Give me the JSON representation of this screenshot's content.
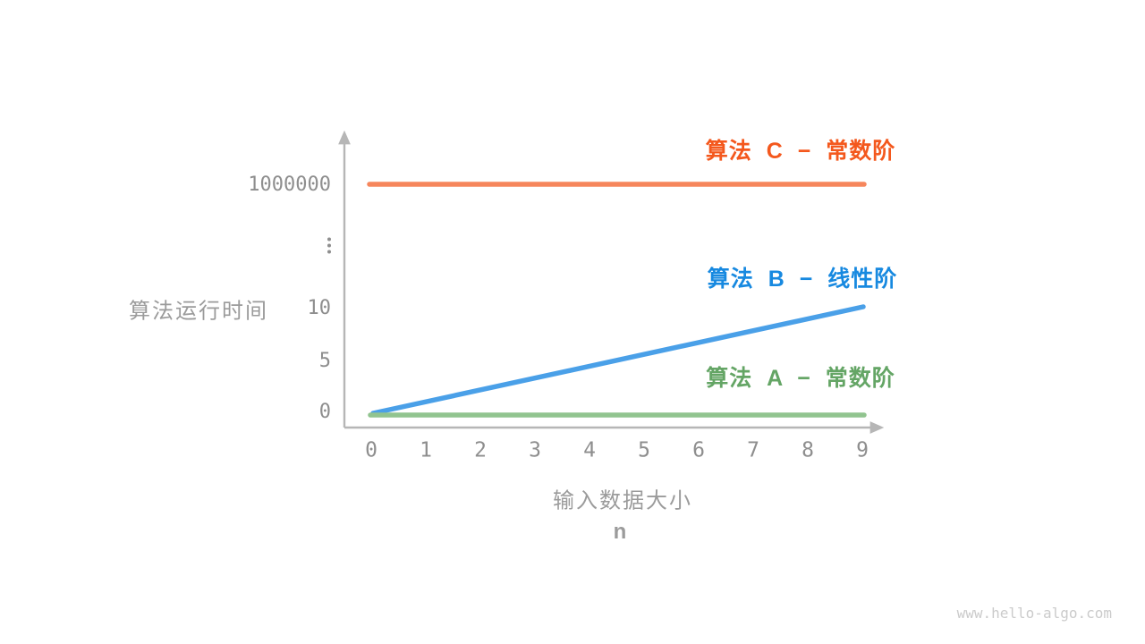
{
  "watermark": "www.hello-algo.com",
  "colors": {
    "background": "#ffffff",
    "axis": "#b6b6b6",
    "tick_text": "#8e8e8e",
    "axis_title_text": "#9b9b9b",
    "watermark_text": "#cbcbcb"
  },
  "chart_data": {
    "type": "line",
    "title": "",
    "xlabel": "输入数据大小",
    "x_variable": "n",
    "ylabel": "算法运行时间",
    "x": [
      0,
      1,
      2,
      3,
      4,
      5,
      6,
      7,
      8,
      9
    ],
    "x_tick_labels": [
      "0",
      "1",
      "2",
      "3",
      "4",
      "5",
      "6",
      "7",
      "8",
      "9"
    ],
    "y_tick_labels_top_to_bottom": [
      "1000000",
      "⋮",
      "10",
      "5",
      "0"
    ],
    "y_axis_broken": true,
    "grid": false,
    "legend_position": "right-of-lines",
    "series": [
      {
        "name": "算法 C − 常数阶",
        "label_color": "#f4581d",
        "line_color": "#f6865c",
        "values": [
          1000000,
          1000000,
          1000000,
          1000000,
          1000000,
          1000000,
          1000000,
          1000000,
          1000000,
          1000000
        ]
      },
      {
        "name": "算法 B − 线性阶",
        "label_color": "#1789e0",
        "line_color": "#4aa0e8",
        "values": [
          0,
          1,
          2,
          3,
          4,
          5,
          6,
          7,
          8,
          9
        ]
      },
      {
        "name": "算法 A − 常数阶",
        "label_color": "#64a565",
        "line_color": "#91c48f",
        "values": [
          0,
          0,
          0,
          0,
          0,
          0,
          0,
          0,
          0,
          0
        ]
      }
    ]
  }
}
